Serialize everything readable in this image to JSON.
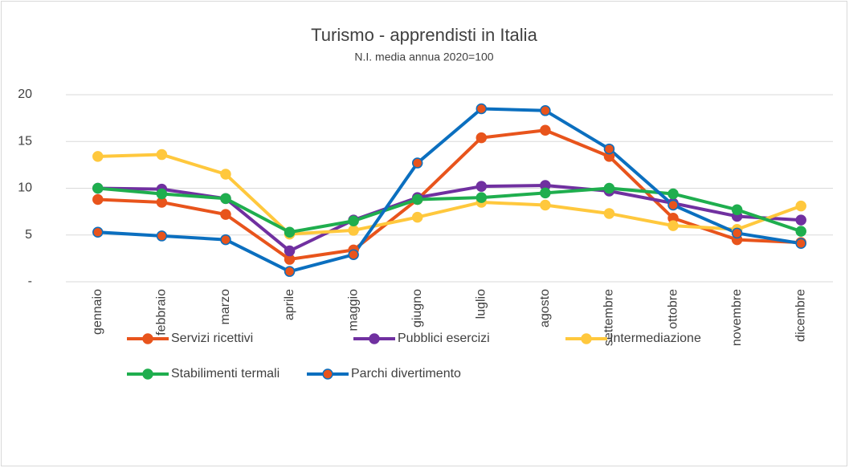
{
  "chart_data": {
    "type": "line",
    "title": "Turismo - apprendisti in Italia",
    "subtitle": "N.I. media annua 2020=100",
    "categories": [
      "gennaio",
      "febbraio",
      "marzo",
      "aprile",
      "maggio",
      "giugno",
      "luglio",
      "agosto",
      "settembre",
      "ottobre",
      "novembre",
      "dicembre"
    ],
    "series": [
      {
        "name": "Servizi ricettivi",
        "color": "#e8541c",
        "marker_color": "#e8541c",
        "values": [
          8.8,
          8.5,
          7.2,
          2.4,
          3.4,
          8.8,
          15.4,
          16.2,
          13.4,
          6.8,
          4.5,
          4.2
        ]
      },
      {
        "name": "Pubblici esercizi",
        "color": "#7030a0",
        "marker_color": "#7030a0",
        "values": [
          10.0,
          9.9,
          8.9,
          3.3,
          6.6,
          9.0,
          10.2,
          10.3,
          9.7,
          8.4,
          7.0,
          6.6
        ]
      },
      {
        "name": "Intermediazione",
        "color": "#ffc83d",
        "marker_color": "#ffc83d",
        "values": [
          13.4,
          13.6,
          11.5,
          5.1,
          5.5,
          6.9,
          8.5,
          8.2,
          7.3,
          6.0,
          5.6,
          8.1
        ]
      },
      {
        "name": "Stabilimenti termali",
        "color": "#1fae4e",
        "marker_color": "#1fae4e",
        "values": [
          10.0,
          9.4,
          8.9,
          5.3,
          6.5,
          8.8,
          9.0,
          9.5,
          10.0,
          9.4,
          7.7,
          5.4
        ]
      },
      {
        "name": "Parchi divertimento",
        "color": "#0b6fbf",
        "marker_color": "#e8541c",
        "values": [
          5.3,
          4.9,
          4.5,
          1.1,
          2.9,
          12.7,
          18.5,
          18.3,
          14.2,
          8.2,
          5.2,
          4.1
        ]
      }
    ],
    "ylim": [
      0,
      20
    ],
    "yticks": [
      {
        "value": 0,
        "label": "-"
      },
      5,
      10,
      15,
      20
    ],
    "grid": true,
    "legend": "bottom"
  }
}
